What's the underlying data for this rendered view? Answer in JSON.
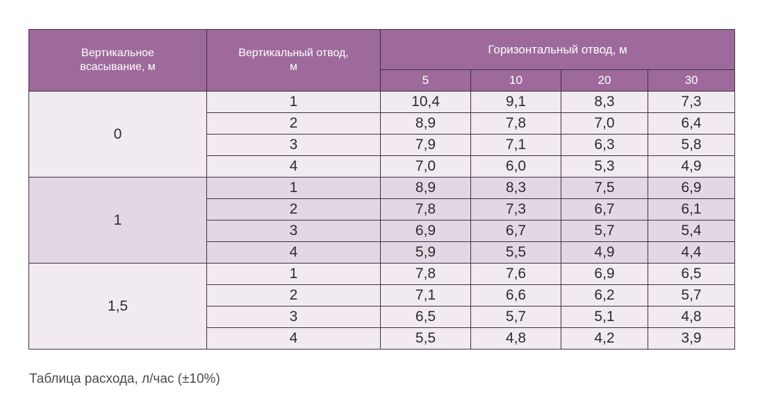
{
  "table": {
    "headers": {
      "vertical_suction": "Вертикальное всасывание, м",
      "vertical_outlet": "Вертикальный отвод, м",
      "horizontal_outlet": "Горизонтальный отвод, м",
      "horizontal_values": [
        "5",
        "10",
        "20",
        "30"
      ]
    },
    "groups": [
      {
        "suction": "0",
        "rows": [
          {
            "outlet": "1",
            "values": [
              "10,4",
              "9,1",
              "8,3",
              "7,3"
            ]
          },
          {
            "outlet": "2",
            "values": [
              "8,9",
              "7,8",
              "7,0",
              "6,4"
            ]
          },
          {
            "outlet": "3",
            "values": [
              "7,9",
              "7,1",
              "6,3",
              "5,8"
            ]
          },
          {
            "outlet": "4",
            "values": [
              "7,0",
              "6,0",
              "5,3",
              "4,9"
            ]
          }
        ]
      },
      {
        "suction": "1",
        "rows": [
          {
            "outlet": "1",
            "values": [
              "8,9",
              "8,3",
              "7,5",
              "6,9"
            ]
          },
          {
            "outlet": "2",
            "values": [
              "7,8",
              "7,3",
              "6,7",
              "6,1"
            ]
          },
          {
            "outlet": "3",
            "values": [
              "6,9",
              "6,7",
              "5,7",
              "5,4"
            ]
          },
          {
            "outlet": "4",
            "values": [
              "5,9",
              "5,5",
              "4,9",
              "4,4"
            ]
          }
        ]
      },
      {
        "suction": "1,5",
        "rows": [
          {
            "outlet": "1",
            "values": [
              "7,8",
              "7,6",
              "6,9",
              "6,5"
            ]
          },
          {
            "outlet": "2",
            "values": [
              "7,1",
              "6,6",
              "6,2",
              "5,7"
            ]
          },
          {
            "outlet": "3",
            "values": [
              "6,5",
              "5,7",
              "5,1",
              "4,8"
            ]
          },
          {
            "outlet": "4",
            "values": [
              "5,5",
              "4,8",
              "4,2",
              "3,9"
            ]
          }
        ]
      }
    ]
  },
  "caption": "Таблица расхода, л/час (±10%)",
  "colors": {
    "header_bg": "#9e6a9c",
    "row_light": "#f2eaf1",
    "row_mid": "#e3d7e3"
  }
}
